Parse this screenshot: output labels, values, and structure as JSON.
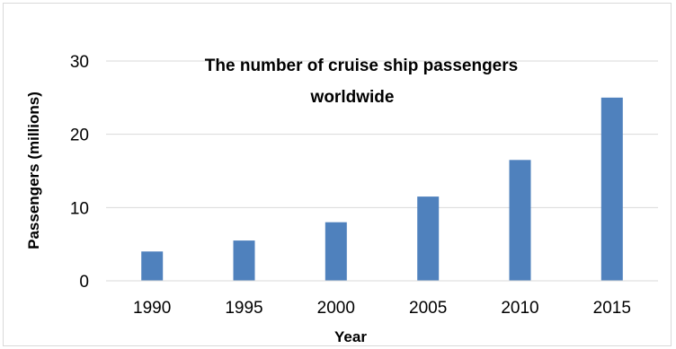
{
  "chart_data": {
    "type": "bar",
    "title_lines": [
      "The number of cruise ship passengers",
      "worldwide"
    ],
    "xlabel": "Year",
    "ylabel": "Passengers (millions)",
    "categories": [
      "1990",
      "1995",
      "2000",
      "2005",
      "2010",
      "2015"
    ],
    "values": [
      4,
      5.5,
      8,
      11.5,
      16.5,
      25
    ],
    "ylim": [
      0,
      30
    ],
    "yticks": [
      "0",
      "10",
      "20",
      "30"
    ],
    "grid": true,
    "legend": "none",
    "colors": {
      "bar": "#4f81bd",
      "grid": "#d9d9d9",
      "axis": "#d9d9d9"
    }
  }
}
